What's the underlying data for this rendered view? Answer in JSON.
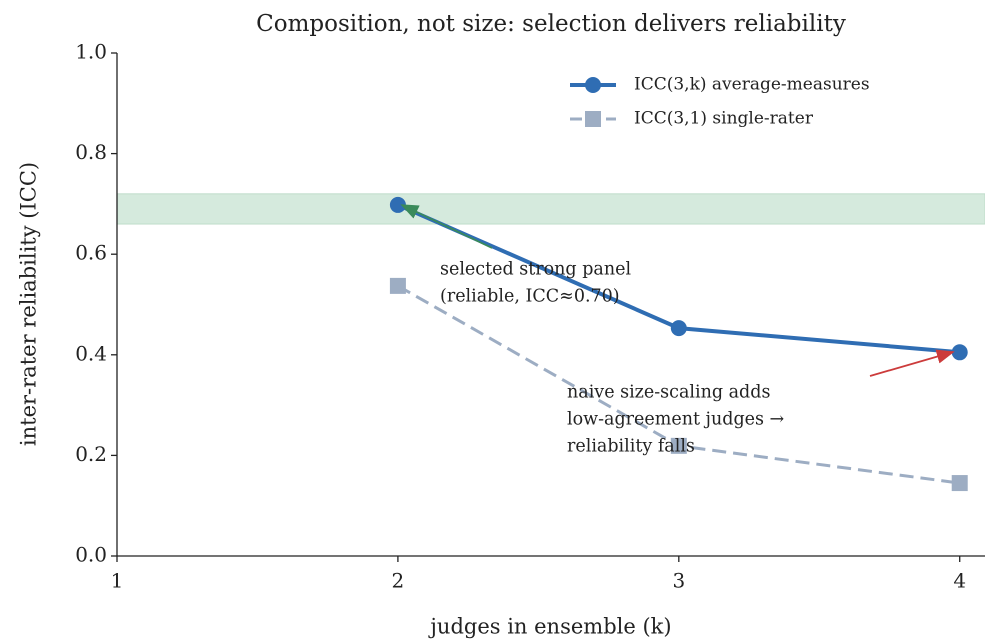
{
  "chart_data": {
    "type": "line",
    "title": "Composition, not size: selection delivers reliability",
    "x_label": "judges in ensemble (k)",
    "y_label": "inter-rater reliability (ICC)",
    "x": [
      2,
      3,
      4
    ],
    "series": [
      {
        "name": "ICC(3,k) average-measures",
        "color": "#2f6db3",
        "marker": "circle",
        "dash": "solid",
        "values": [
          0.698,
          0.453,
          0.405
        ]
      },
      {
        "name": "ICC(3,1) single-rater",
        "color": "#9dadc3",
        "marker": "square",
        "dash": "dashed",
        "values": [
          0.537,
          0.219,
          0.145
        ]
      }
    ],
    "band": {
      "range": [
        0.66,
        0.72
      ],
      "color": "#d5eadd"
    },
    "annotations": [
      {
        "lines": [
          "selected strong panel",
          "(reliable, ICC≈0.70)"
        ],
        "color": "#3a8a5a"
      },
      {
        "lines": [
          "naive size-scaling adds",
          "low-agreement judges →",
          "reliability falls"
        ],
        "color": "#cc3b3b"
      }
    ],
    "xlim": [
      1,
      4.09
    ],
    "ylim": [
      0,
      1
    ],
    "xticks": [
      1,
      2,
      3,
      4
    ],
    "yticks": [
      {
        "value": 0,
        "label": "0.0"
      },
      0.2,
      0.4,
      0.6,
      0.8,
      {
        "value": 1,
        "label": "1.0"
      }
    ],
    "legend": "upper right",
    "grid": false
  }
}
